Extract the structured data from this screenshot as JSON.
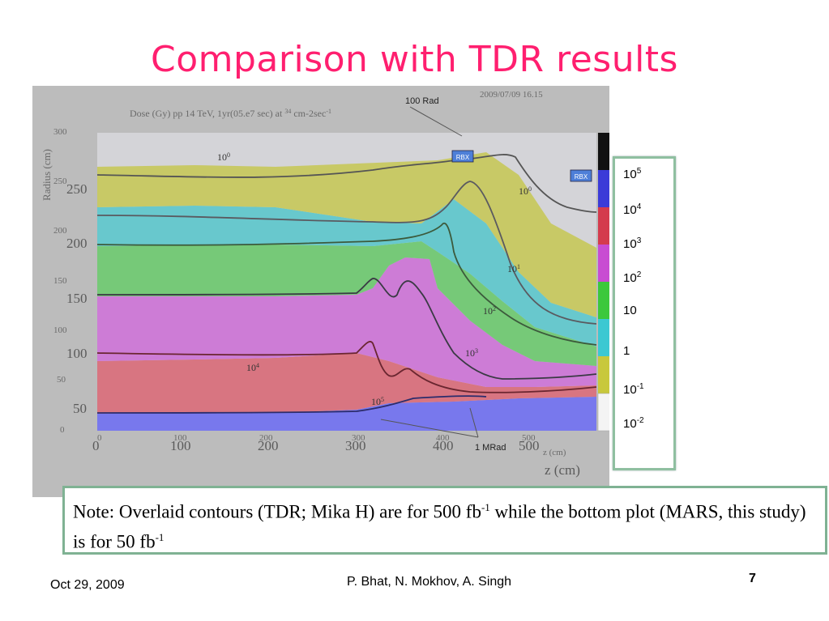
{
  "slide": {
    "title": "Comparison with TDR results",
    "footer": {
      "date": "Oct 29, 2009",
      "authors": "P. Bhat,  N. Mokhov, A. Singh",
      "page": "7"
    }
  },
  "plot": {
    "header_text": "Dose (Gy) pp 14 TeV, 1yr(05.e7 sec) at ",
    "header_sup": "34",
    "header_tail": " cm-2sec",
    "header_tail_sup": "-1",
    "timestamp": "2009/07/09  16.15",
    "y_axis_title": "Radius (cm)",
    "x_axis_title": "z (cm)",
    "y_ticks_faded": [
      "300",
      "250",
      "200",
      "150",
      "100",
      "50",
      "0"
    ],
    "y_ticks": [
      "250",
      "200",
      "150",
      "100",
      "50"
    ],
    "x_ticks_faded": [
      "0",
      "100",
      "200",
      "300",
      "400",
      "500"
    ],
    "x_ticks": [
      "0",
      "100",
      "200",
      "300",
      "400",
      "500"
    ],
    "annotations": {
      "rad_100": "100 Rad",
      "mrad_1": "1 MRad",
      "rbx": "RBX",
      "contour_1e0_a": "10",
      "contour_1e0_b": "10",
      "contour_1e1": "10",
      "contour_1e2": "10",
      "contour_1e3": "10",
      "contour_1e4": "10",
      "contour_1e5": "10",
      "exp_0": "0",
      "exp_1": "1",
      "exp_2": "2",
      "exp_3": "3",
      "exp_4": "4",
      "exp_5": "5"
    },
    "colors": {
      "frame": "#bcbcbc",
      "plot_bg": "#d4d4d8",
      "blue": "#6e6ef0",
      "red": "#d86a78",
      "magenta": "#cc72d6",
      "green": "#6cc86e",
      "cyan": "#5cc6cc",
      "yellow": "#c6c85a"
    }
  },
  "colorbar": {
    "labels": [
      {
        "base": "10",
        "exp": "5"
      },
      {
        "base": "10",
        "exp": "4"
      },
      {
        "base": "10",
        "exp": "3"
      },
      {
        "base": "10",
        "exp": "2"
      },
      {
        "base": "10",
        "exp": ""
      },
      {
        "base": "1",
        "exp": ""
      },
      {
        "base": "10",
        "exp": "-1"
      },
      {
        "base": "10",
        "exp": "-2"
      }
    ]
  },
  "note": {
    "text1": "Note: Overlaid contours (TDR; Mika H) are for 500 fb",
    "sup1": "-1",
    "text2": "  while the bottom plot (MARS, this study) is for 50 fb",
    "sup2": "-1"
  }
}
